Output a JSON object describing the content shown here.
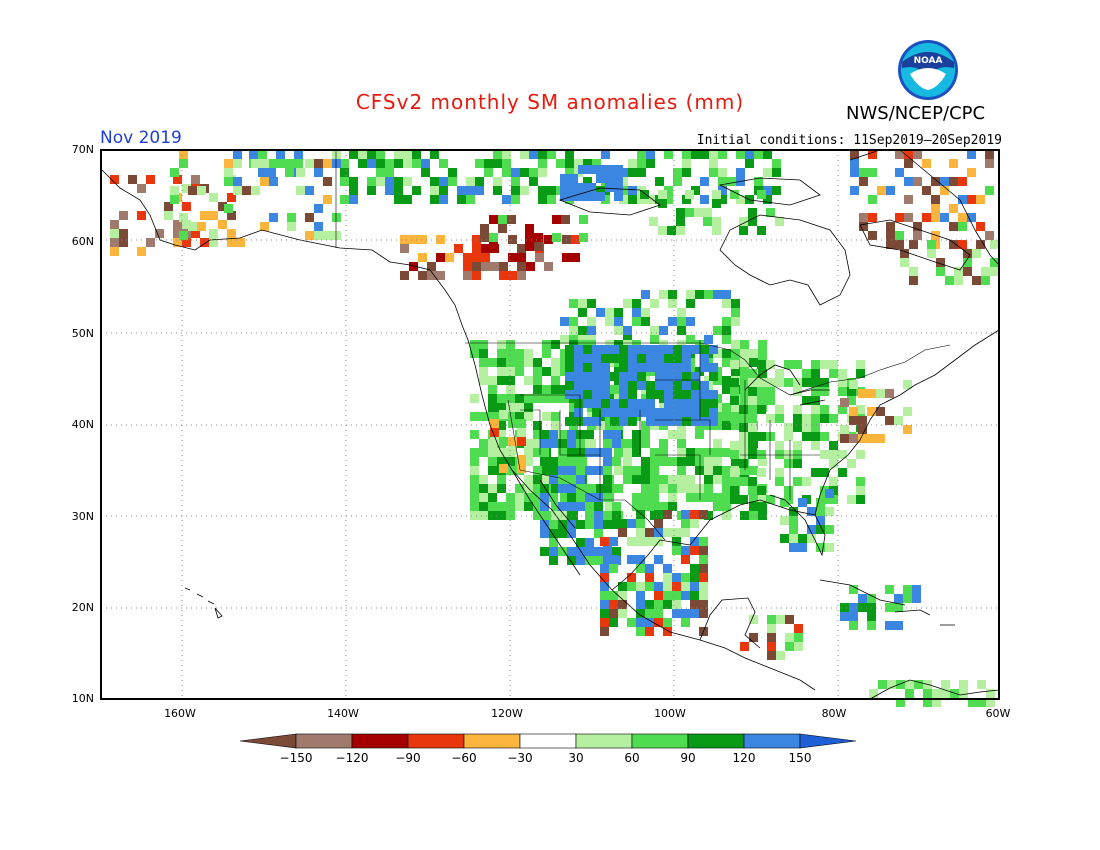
{
  "header": {
    "title": "CFSv2 monthly SM anomalies (mm)",
    "month": "Nov 2019",
    "initial_conditions": "Initial conditions: 11Sep2019–20Sep2019",
    "agency": "NWS/NCEP/CPC",
    "logo_text": "NOAA"
  },
  "map": {
    "lat_labels": [
      "70N",
      "60N",
      "50N",
      "40N",
      "30N",
      "20N",
      "10N"
    ],
    "lon_labels": [
      "160W",
      "140W",
      "120W",
      "100W",
      "80W",
      "60W"
    ],
    "lat_range": [
      10,
      70
    ],
    "lon_range": [
      -170,
      -60
    ]
  },
  "legend": {
    "labels": [
      "−150",
      "−120",
      "−90",
      "−60",
      "−30",
      "30",
      "60",
      "90",
      "120",
      "150"
    ],
    "colors": [
      "#7b4a36",
      "#a07a6c",
      "#a50000",
      "#e8370c",
      "#fbb43c",
      "#ffffff",
      "#b4f0a0",
      "#50dc50",
      "#0a9b16",
      "#3a86e0",
      "#1f5fd6"
    ]
  }
}
